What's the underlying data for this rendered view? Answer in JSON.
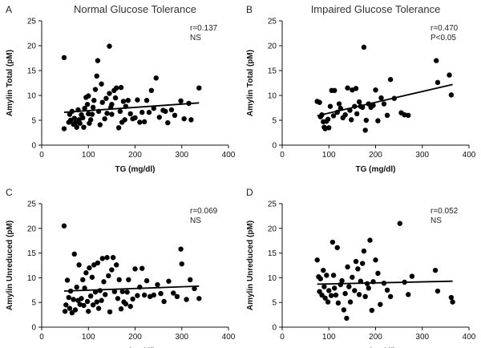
{
  "chart_data": [
    {
      "type": "scatter",
      "panel": "A",
      "title": "Normal Glucose Tolerance",
      "xlabel": "TG (mg/dl)",
      "ylabel": "Amylin Total (pM)",
      "xlim": [
        0,
        400
      ],
      "ylim": [
        0,
        25
      ],
      "xticks": [
        0,
        100,
        200,
        300,
        400
      ],
      "yticks": [
        0,
        5,
        10,
        15,
        20,
        25
      ],
      "annotations": [
        "r=0.137",
        "NS"
      ],
      "grid": false,
      "regression": {
        "x": [
          48,
          337
        ],
        "y": [
          6.6,
          8.5
        ]
      },
      "points": [
        [
          48,
          17.6
        ],
        [
          120,
          17.0
        ],
        [
          145,
          19.9
        ],
        [
          48,
          3.3
        ],
        [
          58,
          4.6
        ],
        [
          60,
          6.2
        ],
        [
          62,
          5.0
        ],
        [
          65,
          6.8
        ],
        [
          68,
          4.2
        ],
        [
          70,
          5.4
        ],
        [
          72,
          4.5
        ],
        [
          75,
          3.6
        ],
        [
          78,
          7.1
        ],
        [
          80,
          5.1
        ],
        [
          82,
          4.4
        ],
        [
          85,
          6.1
        ],
        [
          88,
          5.5
        ],
        [
          90,
          3.6
        ],
        [
          92,
          7.4
        ],
        [
          95,
          9.6
        ],
        [
          98,
          8.2
        ],
        [
          100,
          6.3
        ],
        [
          102,
          4.4
        ],
        [
          105,
          5.1
        ],
        [
          108,
          6.2
        ],
        [
          110,
          7.6
        ],
        [
          112,
          9.0
        ],
        [
          115,
          11.2
        ],
        [
          118,
          13.9
        ],
        [
          122,
          6.8
        ],
        [
          125,
          4.1
        ],
        [
          128,
          12.3
        ],
        [
          130,
          8.6
        ],
        [
          135,
          5.3
        ],
        [
          138,
          9.4
        ],
        [
          140,
          6.4
        ],
        [
          145,
          10.4
        ],
        [
          148,
          7.6
        ],
        [
          150,
          8.2
        ],
        [
          155,
          11.0
        ],
        [
          158,
          9.5
        ],
        [
          160,
          11.5
        ],
        [
          165,
          3.5
        ],
        [
          168,
          6.8
        ],
        [
          170,
          11.6
        ],
        [
          172,
          4.6
        ],
        [
          175,
          8.8
        ],
        [
          178,
          5.1
        ],
        [
          180,
          7.8
        ],
        [
          185,
          9.0
        ],
        [
          190,
          6.3
        ],
        [
          195,
          5.3
        ],
        [
          200,
          5.5
        ],
        [
          205,
          9.1
        ],
        [
          210,
          4.6
        ],
        [
          215,
          6.6
        ],
        [
          220,
          4.7
        ],
        [
          225,
          9.0
        ],
        [
          230,
          6.6
        ],
        [
          235,
          11.0
        ],
        [
          240,
          7.4
        ],
        [
          245,
          13.5
        ],
        [
          252,
          5.6
        ],
        [
          260,
          7.0
        ],
        [
          265,
          6.8
        ],
        [
          270,
          4.5
        ],
        [
          278,
          7.1
        ],
        [
          285,
          6.0
        ],
        [
          298,
          8.9
        ],
        [
          305,
          5.3
        ],
        [
          315,
          8.4
        ],
        [
          320,
          5.1
        ],
        [
          337,
          11.5
        ],
        [
          150,
          6.2
        ],
        [
          100,
          9.9
        ]
      ]
    },
    {
      "type": "scatter",
      "panel": "B",
      "title": "Impaired Glucose Tolerance",
      "xlabel": "TG (mg/dl)",
      "ylabel": "Amylin Total (pM)",
      "xlim": [
        0,
        400
      ],
      "ylim": [
        0,
        25
      ],
      "xticks": [
        0,
        100,
        200,
        300,
        400
      ],
      "yticks": [
        0,
        5,
        10,
        15,
        20,
        25
      ],
      "annotations": [
        "r=0.470",
        "P<0.05"
      ],
      "grid": false,
      "regression": {
        "x": [
          75,
          365
        ],
        "y": [
          5.9,
          12.2
        ]
      },
      "points": [
        [
          75,
          8.8
        ],
        [
          80,
          8.6
        ],
        [
          82,
          5.7
        ],
        [
          85,
          6.1
        ],
        [
          88,
          4.7
        ],
        [
          90,
          3.6
        ],
        [
          92,
          3.3
        ],
        [
          95,
          4.8
        ],
        [
          98,
          5.2
        ],
        [
          100,
          3.5
        ],
        [
          103,
          7.8
        ],
        [
          106,
          11.0
        ],
        [
          110,
          5.9
        ],
        [
          112,
          11.0
        ],
        [
          118,
          6.6
        ],
        [
          122,
          8.3
        ],
        [
          125,
          7.4
        ],
        [
          130,
          5.5
        ],
        [
          135,
          6.1
        ],
        [
          140,
          11.5
        ],
        [
          145,
          7.0
        ],
        [
          148,
          5.1
        ],
        [
          150,
          11.1
        ],
        [
          155,
          7.8
        ],
        [
          158,
          11.4
        ],
        [
          160,
          6.3
        ],
        [
          165,
          8.7
        ],
        [
          168,
          7.8
        ],
        [
          172,
          7.6
        ],
        [
          175,
          19.7
        ],
        [
          178,
          3.0
        ],
        [
          180,
          5.0
        ],
        [
          185,
          8.3
        ],
        [
          190,
          7.6
        ],
        [
          195,
          8.0
        ],
        [
          200,
          11.1
        ],
        [
          205,
          4.9
        ],
        [
          212,
          9.5
        ],
        [
          218,
          8.3
        ],
        [
          225,
          6.0
        ],
        [
          232,
          13.2
        ],
        [
          240,
          9.4
        ],
        [
          255,
          6.5
        ],
        [
          262,
          6.1
        ],
        [
          270,
          6.0
        ],
        [
          330,
          17.0
        ],
        [
          333,
          12.6
        ],
        [
          358,
          14.1
        ],
        [
          362,
          10.1
        ]
      ]
    },
    {
      "type": "scatter",
      "panel": "C",
      "title": "",
      "xlabel": "TG (mg/dl)",
      "ylabel": "Amylin Unreduced (pM)",
      "xlim": [
        0,
        400
      ],
      "ylim": [
        0,
        25
      ],
      "xticks": [
        0,
        100,
        200,
        300,
        400
      ],
      "yticks": [
        0,
        5,
        10,
        15,
        20,
        25
      ],
      "annotations": [
        "r=0.069",
        "NS"
      ],
      "grid": false,
      "regression": {
        "x": [
          48,
          337
        ],
        "y": [
          7.3,
          8.3
        ]
      },
      "points": [
        [
          48,
          20.5
        ],
        [
          50,
          3.2
        ],
        [
          52,
          4.5
        ],
        [
          55,
          9.5
        ],
        [
          58,
          6.0
        ],
        [
          60,
          3.8
        ],
        [
          62,
          7.3
        ],
        [
          65,
          2.9
        ],
        [
          68,
          5.6
        ],
        [
          70,
          14.8
        ],
        [
          72,
          3.5
        ],
        [
          75,
          8.1
        ],
        [
          78,
          5.4
        ],
        [
          80,
          12.6
        ],
        [
          82,
          4.6
        ],
        [
          85,
          5.8
        ],
        [
          88,
          9.6
        ],
        [
          90,
          4.4
        ],
        [
          92,
          7.9
        ],
        [
          95,
          11.0
        ],
        [
          98,
          5.2
        ],
        [
          100,
          3.2
        ],
        [
          102,
          12.0
        ],
        [
          105,
          6.3
        ],
        [
          108,
          10.1
        ],
        [
          110,
          4.5
        ],
        [
          112,
          12.6
        ],
        [
          115,
          7.1
        ],
        [
          118,
          5.1
        ],
        [
          120,
          13.0
        ],
        [
          122,
          3.8
        ],
        [
          125,
          7.4
        ],
        [
          128,
          5.4
        ],
        [
          130,
          13.9
        ],
        [
          133,
          9.2
        ],
        [
          136,
          6.6
        ],
        [
          140,
          14.1
        ],
        [
          143,
          10.4
        ],
        [
          146,
          3.1
        ],
        [
          150,
          11.6
        ],
        [
          153,
          14.1
        ],
        [
          156,
          7.2
        ],
        [
          160,
          12.6
        ],
        [
          163,
          5.8
        ],
        [
          166,
          9.6
        ],
        [
          170,
          3.7
        ],
        [
          173,
          7.2
        ],
        [
          176,
          5.1
        ],
        [
          180,
          4.7
        ],
        [
          183,
          7.1
        ],
        [
          186,
          9.6
        ],
        [
          190,
          4.2
        ],
        [
          195,
          5.7
        ],
        [
          200,
          11.8
        ],
        [
          205,
          6.4
        ],
        [
          210,
          8.1
        ],
        [
          215,
          11.9
        ],
        [
          220,
          6.5
        ],
        [
          225,
          9.4
        ],
        [
          232,
          6.2
        ],
        [
          240,
          6.5
        ],
        [
          248,
          8.6
        ],
        [
          255,
          6.8
        ],
        [
          262,
          5.2
        ],
        [
          272,
          9.3
        ],
        [
          282,
          6.9
        ],
        [
          290,
          6.2
        ],
        [
          298,
          15.8
        ],
        [
          300,
          12.8
        ],
        [
          310,
          5.6
        ],
        [
          318,
          9.6
        ],
        [
          327,
          7.8
        ],
        [
          337,
          5.8
        ]
      ]
    },
    {
      "type": "scatter",
      "panel": "D",
      "title": "",
      "xlabel": "TG (mg/dl)",
      "ylabel": "Amylin Unreduced (pM)",
      "xlim": [
        0,
        400
      ],
      "ylim": [
        0,
        25
      ],
      "xticks": [
        0,
        100,
        200,
        300,
        400
      ],
      "yticks": [
        0,
        5,
        10,
        15,
        20,
        25
      ],
      "annotations": [
        "r=0.052",
        "NS"
      ],
      "grid": false,
      "regression": {
        "x": [
          75,
          365
        ],
        "y": [
          8.7,
          9.3
        ]
      },
      "points": [
        [
          75,
          13.6
        ],
        [
          78,
          10.2
        ],
        [
          80,
          7.2
        ],
        [
          82,
          9.8
        ],
        [
          85,
          6.5
        ],
        [
          88,
          11.5
        ],
        [
          90,
          8.2
        ],
        [
          92,
          5.9
        ],
        [
          95,
          10.5
        ],
        [
          98,
          5.1
        ],
        [
          100,
          7.4
        ],
        [
          105,
          6.4
        ],
        [
          108,
          17.2
        ],
        [
          110,
          10.5
        ],
        [
          112,
          7.9
        ],
        [
          115,
          6.5
        ],
        [
          118,
          16.1
        ],
        [
          120,
          4.9
        ],
        [
          125,
          8.6
        ],
        [
          128,
          9.4
        ],
        [
          132,
          3.5
        ],
        [
          135,
          6.8
        ],
        [
          138,
          1.8
        ],
        [
          140,
          12.2
        ],
        [
          143,
          8.2
        ],
        [
          146,
          5.1
        ],
        [
          150,
          10.1
        ],
        [
          155,
          7.4
        ],
        [
          158,
          13.3
        ],
        [
          162,
          11.8
        ],
        [
          165,
          6.6
        ],
        [
          168,
          9.3
        ],
        [
          172,
          12.9
        ],
        [
          175,
          15.4
        ],
        [
          178,
          6.2
        ],
        [
          182,
          8.8
        ],
        [
          185,
          7.9
        ],
        [
          188,
          17.6
        ],
        [
          192,
          3.4
        ],
        [
          195,
          9.2
        ],
        [
          200,
          13.6
        ],
        [
          205,
          10.9
        ],
        [
          210,
          4.6
        ],
        [
          218,
          8.9
        ],
        [
          225,
          7.5
        ],
        [
          232,
          6.2
        ],
        [
          252,
          21.0
        ],
        [
          262,
          9.1
        ],
        [
          270,
          6.6
        ],
        [
          278,
          10.3
        ],
        [
          328,
          11.5
        ],
        [
          333,
          7.3
        ],
        [
          362,
          6.0
        ],
        [
          365,
          5.1
        ]
      ]
    }
  ]
}
